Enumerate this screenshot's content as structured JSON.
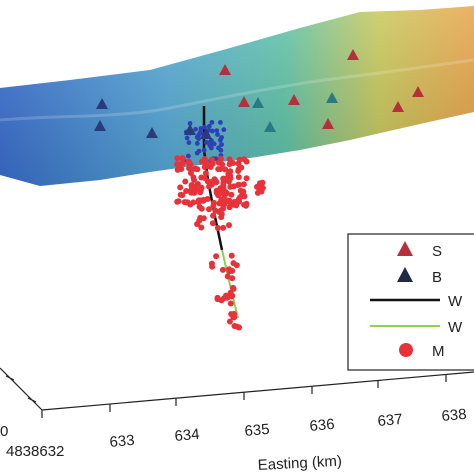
{
  "chart_data": {
    "type": "scatter",
    "subtype": "3d-surface-with-points",
    "xlabel": "Easting (km)",
    "x_ticks": [
      "633",
      "634",
      "635",
      "636",
      "637",
      "638"
    ],
    "y_tick_partial": "0",
    "y_tick_left": "4838632",
    "grid": false,
    "legend_position": "right",
    "legend": [
      {
        "label": "S",
        "marker": "triangle",
        "color": "#b5303a"
      },
      {
        "label": "B",
        "marker": "triangle",
        "color": "#1f2a44"
      },
      {
        "label": "W",
        "marker": "line",
        "color": "#111111"
      },
      {
        "label": "W",
        "marker": "line",
        "color": "#8fd14f"
      },
      {
        "label": "M",
        "marker": "circle",
        "color": "#e8323a"
      }
    ],
    "colors": {
      "surface_low": "#3a6fd0",
      "surface_mid": "#5fc0c8",
      "surface_high": "#e9a44a",
      "seismic_triangle": "#b5303a",
      "teal_triangle": "#2a7a82",
      "blue_triangle": "#2a3a7a",
      "blue_points": "#2f3fb8",
      "red_points": "#e8323a",
      "well_black": "#111111",
      "well_green": "#8fd14f"
    }
  }
}
